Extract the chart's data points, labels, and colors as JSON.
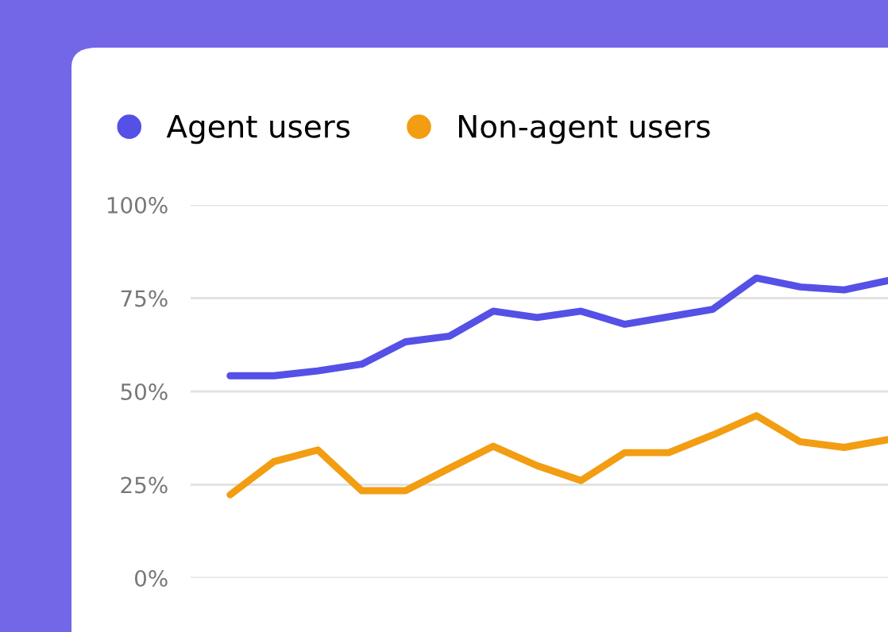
{
  "chart_data": {
    "type": "line",
    "categories": [
      null,
      null,
      null,
      null,
      null,
      null,
      null,
      null,
      null,
      null,
      null,
      null,
      null,
      null,
      null,
      null
    ],
    "series": [
      {
        "name": "Agent users",
        "color": "#5550e6",
        "values": [
          54.2,
          54.2,
          55.5,
          57.3,
          63.3,
          64.8,
          71.5,
          69.8,
          71.5,
          68,
          70,
          72,
          80.4,
          78,
          77.2,
          79.7
        ]
      },
      {
        "name": "Non-agent users",
        "color": "#f29d12",
        "values": [
          22.3,
          31.2,
          34.3,
          23.4,
          23.4,
          29.4,
          35.3,
          30.1,
          26.1,
          33.6,
          33.6,
          38.3,
          43.5,
          36.5,
          35.0,
          37.1
        ]
      }
    ],
    "ylim": [
      0,
      100
    ],
    "yticks": [
      {
        "value": 0,
        "label": "0%"
      },
      {
        "value": 25,
        "label": "25%"
      },
      {
        "value": 50,
        "label": "50%"
      },
      {
        "value": 75,
        "label": "75%"
      },
      {
        "value": 100,
        "label": "100%"
      }
    ],
    "grid": "y",
    "legend": "top left",
    "marker": "none",
    "line_style": "solid",
    "tick_labels": "y"
  }
}
